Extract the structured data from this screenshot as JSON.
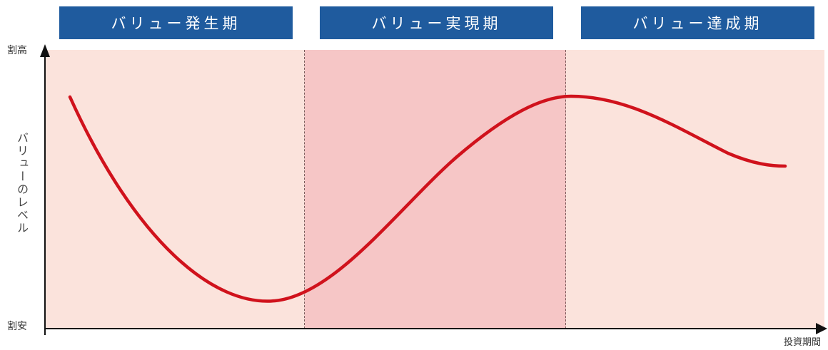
{
  "phases": [
    {
      "label": "バリュー発生期"
    },
    {
      "label": "バリュー実現期"
    },
    {
      "label": "バリュー達成期"
    }
  ],
  "axes": {
    "y_high": "割高",
    "y_low": "割安",
    "y_label": "バリューのレベル",
    "x_label": "投資期間"
  },
  "colors": {
    "header": "#1f5b9e",
    "band_light": "#fbe3dc",
    "band_mid": "#f6c6c6",
    "curve": "#d0121c",
    "axis": "#111111"
  }
}
